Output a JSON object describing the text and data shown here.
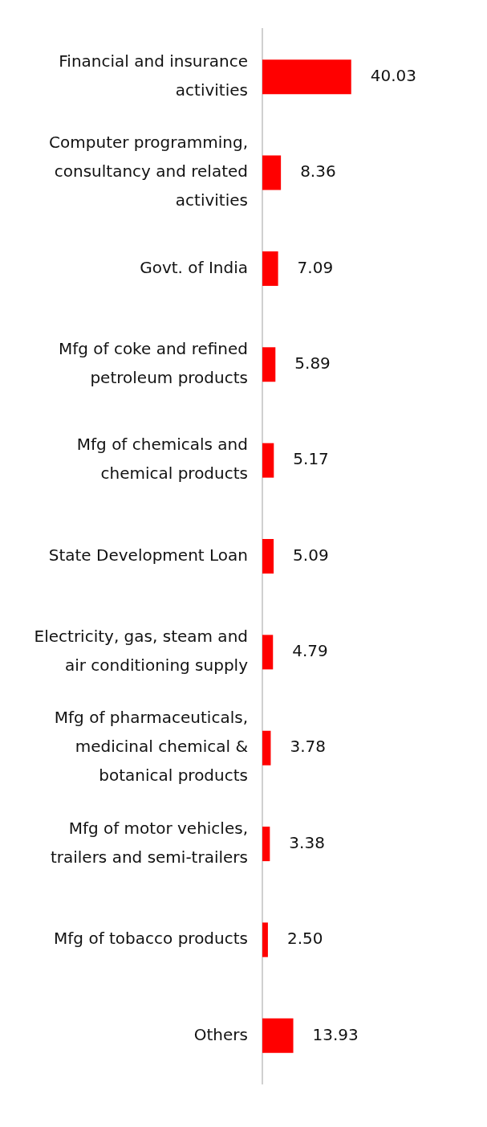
{
  "chart_data": {
    "type": "bar",
    "orientation": "horizontal",
    "categories": [
      "Financial and insurance activities",
      "Computer programming, consultancy and related activities",
      "Govt. of India",
      "Mfg of coke and refined petroleum products",
      "Mfg of chemicals and chemical products",
      "State Development Loan",
      "Electricity, gas, steam and air conditioning supply",
      "Mfg of pharmaceuticals, medicinal chemical & botanical products",
      "Mfg of motor vehicles, trailers and semi-trailers",
      "Mfg of tobacco products",
      "Others"
    ],
    "values": [
      40.03,
      8.36,
      7.09,
      5.89,
      5.17,
      5.09,
      4.79,
      3.78,
      3.38,
      2.5,
      13.93
    ],
    "value_labels": [
      "40.03",
      "8.36",
      "7.09",
      "5.89",
      "5.17",
      "5.09",
      "4.79",
      "3.78",
      "3.38",
      "2.50",
      "13.93"
    ],
    "color": "#ff0000",
    "tick_labels": "y",
    "grid": false,
    "legend": false
  }
}
